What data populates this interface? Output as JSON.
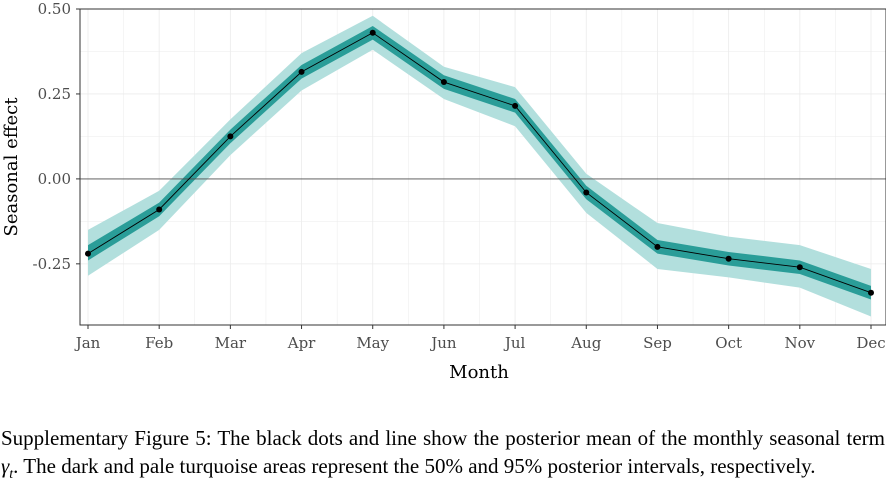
{
  "chart_data": {
    "type": "line",
    "xlabel": "Month",
    "ylabel": "Seasonal effect",
    "categories": [
      "Jan",
      "Feb",
      "Mar",
      "Apr",
      "May",
      "Jun",
      "Jul",
      "Aug",
      "Sep",
      "Oct",
      "Nov",
      "Dec"
    ],
    "ylim": [
      -0.43,
      0.5
    ],
    "yticks": [
      0.5,
      0.25,
      0.0,
      -0.25
    ],
    "ytick_labels": [
      "0.50",
      "0.25",
      "0.00",
      "-0.25"
    ],
    "reference_line": 0,
    "grid": true,
    "series": [
      {
        "role": "posterior_mean",
        "values": [
          -0.22,
          -0.09,
          0.125,
          0.315,
          0.43,
          0.285,
          0.215,
          -0.04,
          -0.2,
          -0.235,
          -0.26,
          -0.335
        ]
      }
    ],
    "interval_50": {
      "lower": [
        -0.24,
        -0.11,
        0.105,
        0.295,
        0.41,
        0.265,
        0.195,
        -0.06,
        -0.22,
        -0.255,
        -0.28,
        -0.355
      ],
      "upper": [
        -0.195,
        -0.07,
        0.145,
        0.335,
        0.45,
        0.305,
        0.235,
        -0.02,
        -0.18,
        -0.215,
        -0.24,
        -0.315
      ]
    },
    "interval_95": {
      "lower": [
        -0.285,
        -0.15,
        0.07,
        0.26,
        0.38,
        0.235,
        0.155,
        -0.1,
        -0.265,
        -0.29,
        -0.32,
        -0.405
      ],
      "upper": [
        -0.15,
        -0.035,
        0.175,
        0.37,
        0.48,
        0.33,
        0.27,
        0.015,
        -0.13,
        -0.17,
        -0.195,
        -0.265
      ]
    },
    "colors": {
      "band_95": "#b2dfdd",
      "band_50": "#2a9d98",
      "line": "#000000",
      "points": "#000000",
      "zero_line": "#4d4d4d",
      "grid": "#ebebeb",
      "panel_border": "#333333"
    }
  },
  "caption": {
    "lead": "Supplementary Figure 5:",
    "text_before_symbol": " The black dots and line show the posterior mean of the monthly seasonal term ",
    "symbol": "γ",
    "subscript": "t",
    "text_after_symbol": ". The dark and pale turquoise areas represent the 50% and 95% posterior intervals, respectively."
  }
}
